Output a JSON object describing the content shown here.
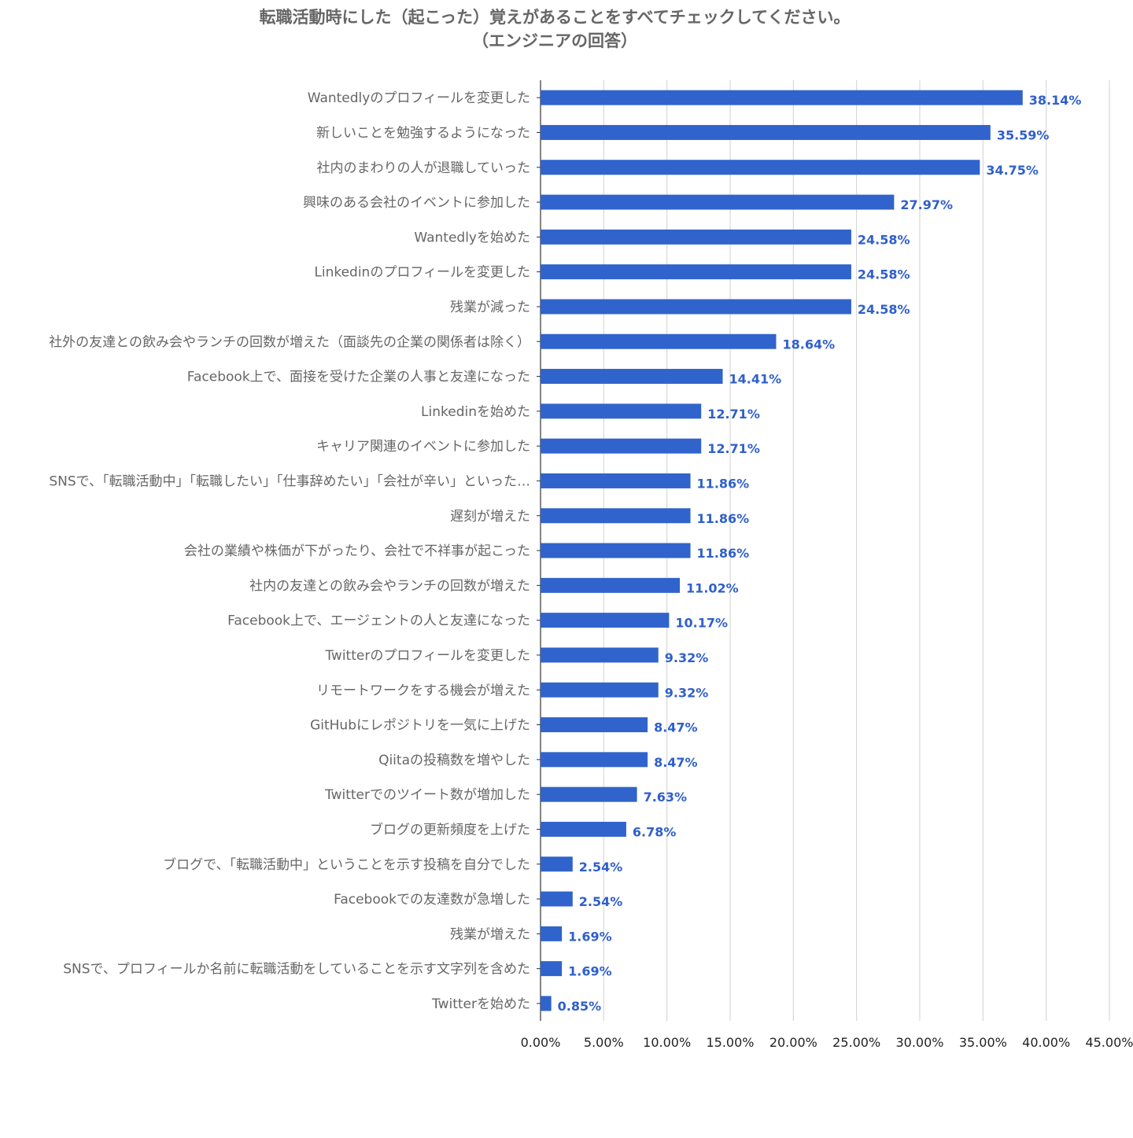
{
  "chart_data": {
    "type": "bar",
    "orientation": "horizontal",
    "title": "転職活動時にした（起こった）覚えがあることをすべてチェックしてください。",
    "subtitle": "（エンジニアの回答）",
    "xlim": [
      0,
      45
    ],
    "x_ticks": [
      "0.00%",
      "5.00%",
      "10.00%",
      "15.00%",
      "20.00%",
      "25.00%",
      "30.00%",
      "35.00%",
      "40.00%",
      "45.00%"
    ],
    "grid": true,
    "bar_color": "#3063cc",
    "label_color": "#2f5fcb",
    "categories": [
      "Wantedlyのプロフィールを変更した",
      "新しいことを勉強するようになった",
      "社内のまわりの人が退職していった",
      "興味のある会社のイベントに参加した",
      "Wantedlyを始めた",
      "Linkedinのプロフィールを変更した",
      "残業が減った",
      "社外の友達との飲み会やランチの回数が増えた（面談先の企業の関係者は除く）",
      "Facebook上で、面接を受けた企業の人事と友達になった",
      "Linkedinを始めた",
      "キャリア関連のイベントに参加した",
      "SNSで、「転職活動中」「転職したい」「仕事辞めたい」「会社が辛い」といった…",
      "遅刻が増えた",
      "会社の業績や株価が下がったり、会社で不祥事が起こった",
      "社内の友達との飲み会やランチの回数が増えた",
      "Facebook上で、エージェントの人と友達になった",
      "Twitterのプロフィールを変更した",
      "リモートワークをする機会が増えた",
      "GitHubにレポジトリを一気に上げた",
      "Qiitaの投稿数を増やした",
      "Twitterでのツイート数が増加した",
      "ブログの更新頻度を上げた",
      "ブログで、「転職活動中」ということを示す投稿を自分でした",
      "Facebookでの友達数が急増した",
      "残業が増えた",
      "SNSで、プロフィールか名前に転職活動をしていることを示す文字列を含めた",
      "Twitterを始めた"
    ],
    "values": [
      38.14,
      35.59,
      34.75,
      27.97,
      24.58,
      24.58,
      24.58,
      18.64,
      14.41,
      12.71,
      12.71,
      11.86,
      11.86,
      11.86,
      11.02,
      10.17,
      9.32,
      9.32,
      8.47,
      8.47,
      7.63,
      6.78,
      2.54,
      2.54,
      1.69,
      1.69,
      0.85
    ],
    "value_labels": [
      "38.14%",
      "35.59%",
      "34.75%",
      "27.97%",
      "24.58%",
      "24.58%",
      "24.58%",
      "18.64%",
      "14.41%",
      "12.71%",
      "12.71%",
      "11.86%",
      "11.86%",
      "11.86%",
      "11.02%",
      "10.17%",
      "9.32%",
      "9.32%",
      "8.47%",
      "8.47%",
      "7.63%",
      "6.78%",
      "2.54%",
      "2.54%",
      "1.69%",
      "1.69%",
      "0.85%"
    ]
  }
}
